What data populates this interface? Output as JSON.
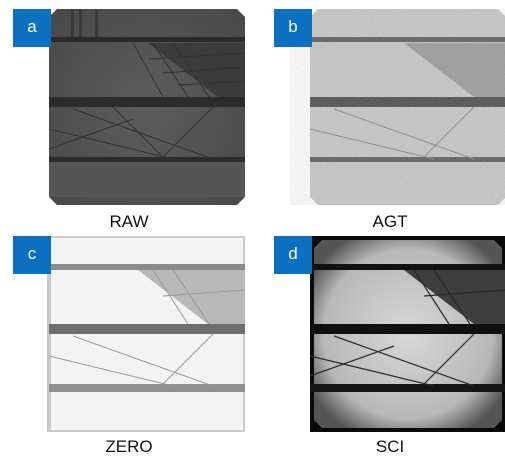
{
  "panels": [
    {
      "letter": "a",
      "caption": "RAW"
    },
    {
      "letter": "b",
      "caption": "AGT"
    },
    {
      "letter": "c",
      "caption": "ZERO"
    },
    {
      "letter": "d",
      "caption": "SCI"
    }
  ],
  "colors": {
    "badge": "#0b70c0",
    "caption_text": "#111111"
  }
}
